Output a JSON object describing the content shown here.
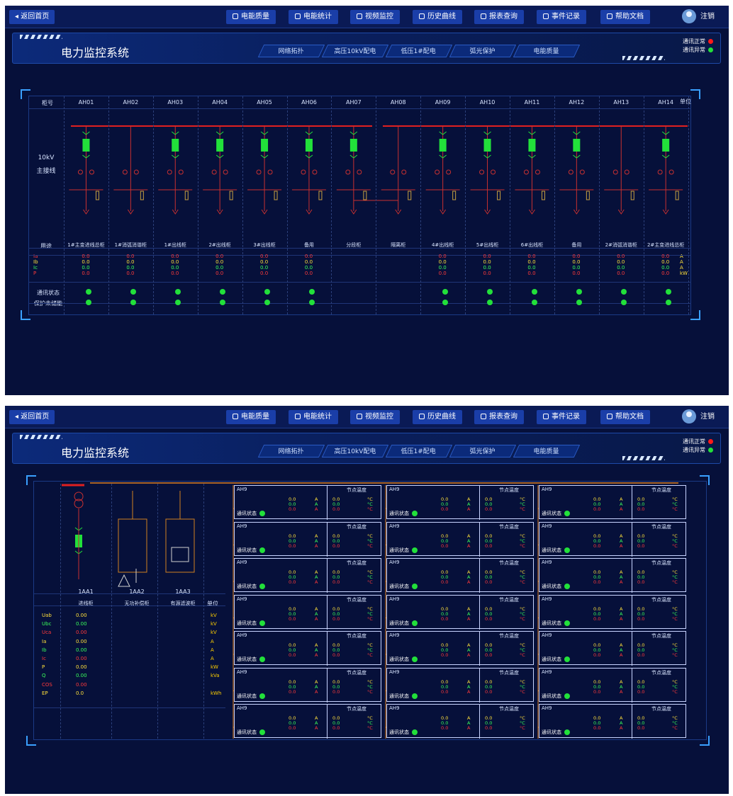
{
  "topbar": {
    "back": "返回首页",
    "nav": [
      "电能质量",
      "电能统计",
      "视频监控",
      "历史曲线",
      "报表查询",
      "事件记录",
      "帮助文档"
    ],
    "user": "注销"
  },
  "title": "电力监控系统",
  "tabs": [
    "网络拓扑",
    "高压10kV配电",
    "低压1#配电",
    "弧光保护",
    "电能质量"
  ],
  "comm_legend": {
    "normal": "通讯正常",
    "abnormal": "通讯异常"
  },
  "colors": {
    "bg": "#06103a",
    "accent": "#1a3ea8",
    "busbar": "#e02020",
    "normal": "#22e03a",
    "abnormal": "#ff1a1a"
  },
  "hv": {
    "header_label": "柜号",
    "unit_label": "单位",
    "diagram_label_1": "10kV",
    "diagram_label_2": "主接线",
    "usage_label": "用途",
    "comm_label": "通讯状态",
    "protect_label": "保护未储能",
    "cabinets": [
      "AH01",
      "AH02",
      "AH03",
      "AH04",
      "AH05",
      "AH06",
      "AH07",
      "AH08",
      "AH09",
      "AH10",
      "AH11",
      "AH12",
      "AH13",
      "AH14"
    ],
    "usages": [
      "1#主变进线总柜",
      "1#消弧消谐柜",
      "1#出线柜",
      "2#出线柜",
      "3#出线柜",
      "备用",
      "分段柜",
      "隔离柜",
      "4#出线柜",
      "5#出线柜",
      "6#出线柜",
      "备用",
      "2#消弧消谐柜",
      "2#主变进线总柜"
    ],
    "params": [
      "Ia",
      "Ib",
      "Ic",
      "P"
    ],
    "units": [
      "A",
      "A",
      "A",
      "kW"
    ],
    "values": "0.0"
  },
  "lv": {
    "cabinets": [
      "1AA1",
      "1AA2",
      "1AA3"
    ],
    "usages": [
      "进线柜",
      "无功补偿柜",
      "有源滤波柜"
    ],
    "unit_label": "单位",
    "params": [
      "Uab",
      "Ubc",
      "Uca",
      "Ia",
      "Ib",
      "Ic",
      "P",
      "Q",
      "COS",
      "EP"
    ],
    "values": [
      "0.00",
      "0.00",
      "0.00",
      "0.00",
      "0.00",
      "0.00",
      "0.00",
      "0.00",
      "0.00",
      "0.0"
    ],
    "units": [
      "kV",
      "kV",
      "kV",
      "A",
      "A",
      "A",
      "kW",
      "kVa",
      "",
      "kWh"
    ],
    "feeder": {
      "id": "AH9",
      "temp_title": "节点温度",
      "status_label": "通讯状态",
      "value": "0.0",
      "amp_unit": "A",
      "temp_unit": "°C"
    }
  }
}
